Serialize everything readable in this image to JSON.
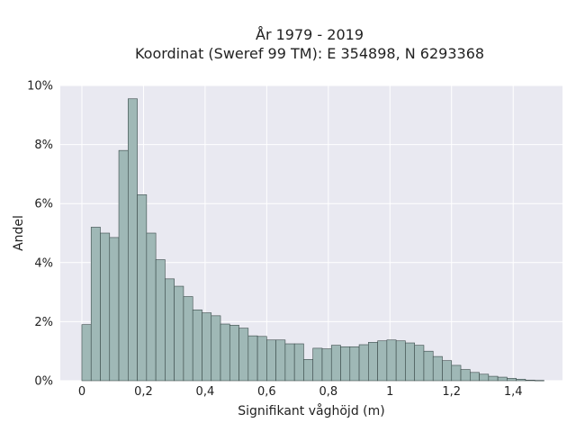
{
  "chart_data": {
    "type": "bar",
    "title": "År 1979 - 2019",
    "subtitle": "Koordinat (Sweref 99 TM): E 354898, N 6293368",
    "xlabel": "Signifikant våghöjd (m)",
    "ylabel": "Andel",
    "xlim": [
      -0.07,
      1.56
    ],
    "ylim": [
      0,
      10
    ],
    "y_unit": "%",
    "x_ticks": [
      0,
      0.2,
      0.4,
      0.6,
      0.8,
      1,
      1.2,
      1.4
    ],
    "x_tick_labels": [
      "0",
      "0,2",
      "0,4",
      "0,6",
      "0,8",
      "1",
      "1,2",
      "1,4"
    ],
    "y_ticks": [
      0,
      2,
      4,
      6,
      8,
      10
    ],
    "y_tick_labels": [
      "0%",
      "2%",
      "4%",
      "6%",
      "8%",
      "10%"
    ],
    "grid": true,
    "bin_width": 0.03,
    "bin_start": 0,
    "values": [
      1.9,
      5.2,
      5.0,
      4.85,
      7.8,
      9.55,
      6.3,
      5.0,
      4.1,
      3.45,
      3.2,
      2.85,
      2.4,
      2.3,
      2.2,
      1.92,
      1.88,
      1.78,
      1.52,
      1.5,
      1.38,
      1.38,
      1.25,
      1.25,
      0.72,
      1.1,
      1.08,
      1.2,
      1.15,
      1.15,
      1.22,
      1.3,
      1.35,
      1.38,
      1.35,
      1.28,
      1.2,
      1.0,
      0.82,
      0.68,
      0.52,
      0.38,
      0.28,
      0.22,
      0.15,
      0.12,
      0.08,
      0.05,
      0.02,
      0.01
    ]
  },
  "colors": {
    "plot_background": "#e9e9f1",
    "bar_fill": "#9fb8b6",
    "bar_stroke": "#3a4a49",
    "grid": "#ffffff"
  }
}
